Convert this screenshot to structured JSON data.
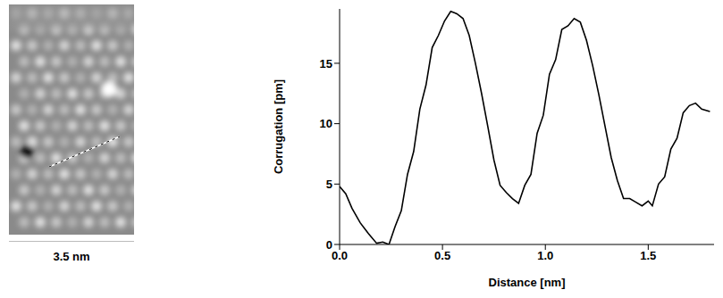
{
  "image": {
    "scale_bar": "3.5 nm"
  },
  "chart_data": {
    "type": "line",
    "x_label": "Distance [nm]",
    "y_label": "Corrugation [pm]",
    "color": "#000000",
    "x": [
      0.0,
      0.03,
      0.06,
      0.1,
      0.14,
      0.18,
      0.21,
      0.24,
      0.27,
      0.3,
      0.33,
      0.36,
      0.39,
      0.42,
      0.45,
      0.48,
      0.51,
      0.54,
      0.57,
      0.6,
      0.63,
      0.66,
      0.69,
      0.72,
      0.75,
      0.78,
      0.81,
      0.84,
      0.87,
      0.9,
      0.93,
      0.96,
      0.99,
      1.02,
      1.05,
      1.08,
      1.11,
      1.14,
      1.17,
      1.2,
      1.23,
      1.26,
      1.29,
      1.32,
      1.35,
      1.38,
      1.41,
      1.44,
      1.47,
      1.5,
      1.52,
      1.55,
      1.58,
      1.61,
      1.64,
      1.67,
      1.7,
      1.73,
      1.76,
      1.8
    ],
    "values": [
      4.8,
      4.2,
      3.0,
      1.8,
      0.9,
      0.1,
      0.2,
      0.0,
      1.5,
      2.8,
      5.8,
      7.7,
      11.2,
      13.2,
      16.3,
      17.3,
      18.5,
      19.3,
      19.1,
      18.7,
      17.3,
      15.0,
      12.5,
      9.8,
      7.0,
      4.9,
      4.3,
      3.8,
      3.4,
      4.9,
      5.8,
      9.2,
      10.7,
      14.1,
      15.3,
      17.8,
      18.1,
      18.7,
      18.4,
      16.9,
      14.8,
      12.4,
      9.8,
      7.2,
      5.3,
      3.8,
      3.8,
      3.5,
      3.2,
      3.6,
      3.2,
      5.0,
      5.6,
      7.9,
      8.8,
      10.9,
      11.5,
      11.7,
      11.2,
      11.0
    ],
    "xlim": [
      0,
      1.82
    ],
    "xticks": [
      {
        "value": 0,
        "label": "0.0"
      },
      0.5,
      {
        "value": 1,
        "label": "1.0"
      },
      1.5
    ],
    "ylim": [
      0,
      19.5
    ],
    "yticks": [
      0,
      5,
      10,
      15
    ],
    "grid": false
  }
}
